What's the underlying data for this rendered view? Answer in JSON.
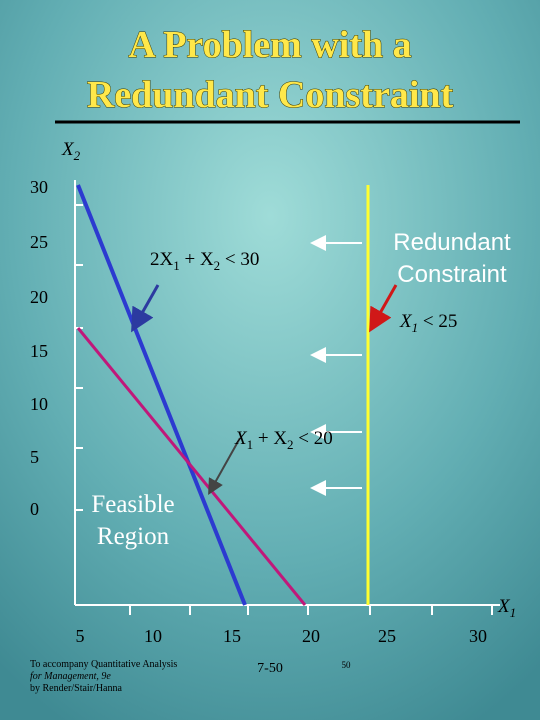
{
  "slide": {
    "title": [
      "A Problem with a",
      "Redundant Constraint"
    ],
    "y_axis_label": [
      "X",
      "2"
    ],
    "x_axis_label": [
      "X",
      "1"
    ],
    "y_tick_labels": [
      "30",
      "25",
      "20",
      "15",
      "10",
      "5",
      "0"
    ],
    "x_tick_labels": [
      "5",
      "10",
      "15",
      "20",
      "25",
      "30"
    ],
    "constraints": [
      [
        "2X",
        "1",
        " + X",
        "2",
        " < 30"
      ],
      [
        "X",
        "1",
        " < 25"
      ],
      [
        "X",
        "1",
        " + X",
        "2",
        " < 20"
      ]
    ],
    "callout": [
      "Redundant",
      "Constraint"
    ],
    "region_label": [
      "Feasible",
      "Region"
    ],
    "footer": [
      "To accompany Quantitative Analysis",
      "for Management, 9e",
      "by Render/Stair/Hanna"
    ],
    "page_number": "7-50",
    "slide_number": "50"
  }
}
